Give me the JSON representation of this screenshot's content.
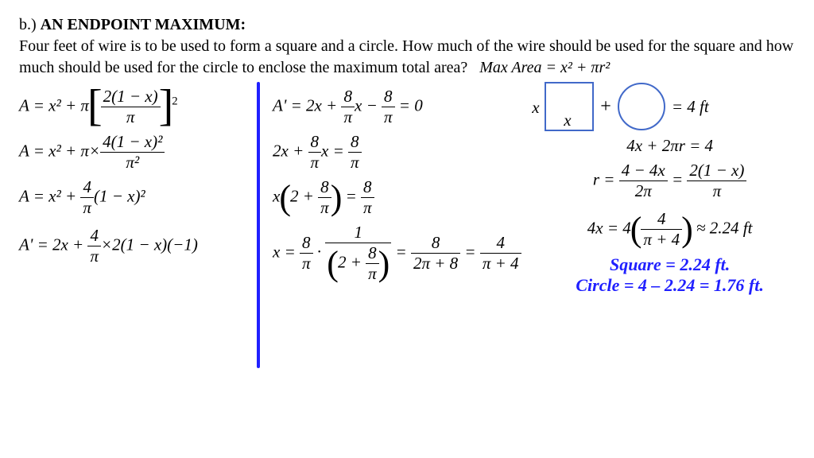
{
  "header": {
    "label": "b.) ",
    "title": "AN ENDPOINT MAXIMUM:",
    "problem": "Four feet of wire is to be used to form a square and a circle. How much of the wire should be used for the square and how much should be used for the circle to enclose the maximum total area?",
    "maxarea": "Max  Area = x² + πr²"
  },
  "col1": {
    "e1a": "A = x² + π",
    "e1b_num": "2(1 − x)",
    "e1b_den": "π",
    "e2a": "A = x² + π×",
    "e2b_num": "4(1 − x)²",
    "e2b_den": "π²",
    "e3a": "A = x² + ",
    "e3b_num": "4",
    "e3b_den": "π",
    "e3c": "(1 − x)²",
    "e4a": "A' = 2x + ",
    "e4b_num": "4",
    "e4b_den": "π",
    "e4c": "×2(1 − x)(−1)"
  },
  "col2": {
    "l1a": "A' = 2x + ",
    "l1b_n": "8",
    "l1b_d": "π",
    "l1c": "x − ",
    "l1d_n": "8",
    "l1d_d": "π",
    "l1e": " = 0",
    "l2a": "2x + ",
    "l2b_n": "8",
    "l2b_d": "π",
    "l2c": "x = ",
    "l2d_n": "8",
    "l2d_d": "π",
    "l3a": "x",
    "l3b": "2 + ",
    "l3c_n": "8",
    "l3c_d": "π",
    "l3d": " = ",
    "l3e_n": "8",
    "l3e_d": "π",
    "l4a": "x = ",
    "l4b_n": "8",
    "l4b_d": "π",
    "l4c": " · ",
    "l4d_n": "1",
    "l4d_d1": "2 + ",
    "l4d_d2n": "8",
    "l4d_d2d": "π",
    "l4e": " = ",
    "l4f_n": "8",
    "l4f_d": "2π + 8",
    "l4g": " = ",
    "l4h_n": "4",
    "l4h_d": "π + 4"
  },
  "col3": {
    "x": "x",
    "eq4ft": " = 4  ft",
    "peri": "4x + 2πr = 4",
    "ra": "r = ",
    "rb_n": "4 − 4x",
    "rb_d": "2π",
    "rc": " = ",
    "rd_n": "2(1 − x)",
    "rd_d": "π",
    "fa": "4x = 4",
    "fb_n": "4",
    "fb_d": "π + 4",
    "fc": " ≈ 2.24  ft",
    "ans1": "Square = 2.24 ft.",
    "ans2": "Circle = 4 – 2.24 = 1.76 ft."
  },
  "colors": {
    "blue": "#2020ff",
    "shape_border": "#4169c9"
  }
}
